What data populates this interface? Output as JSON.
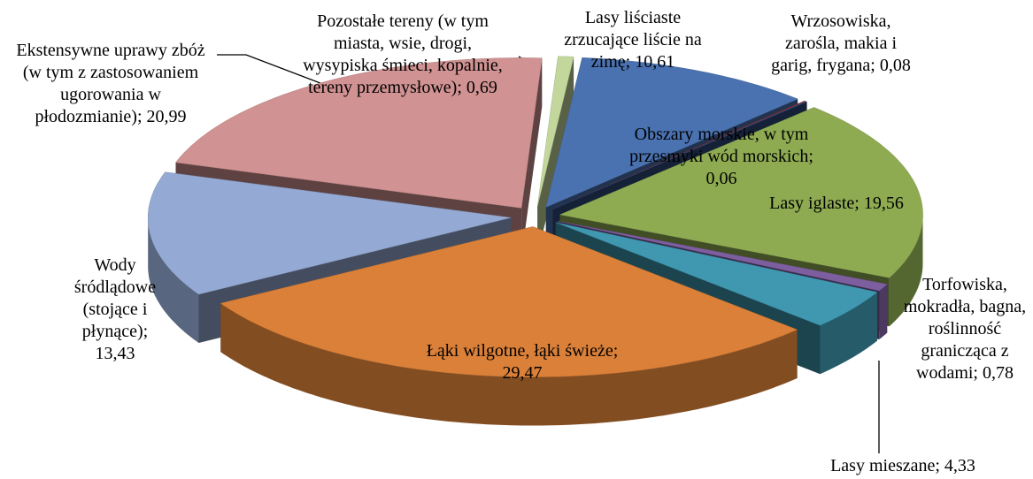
{
  "chart_data": {
    "type": "pie3d",
    "labels": [
      "Lasy liściaste zrzucające liście na zimę; 10,61",
      "Wrzosowiska, zarośla, makia i garig, frygana; 0,08",
      "Obszary morskie, w tym przesmyki wód morskich; 0,06",
      "Lasy iglaste; 19,56",
      "Torfowiska, mokradła, bagna, roślinność granicząca z wodami; 0,78",
      "Lasy mieszane; 4,33",
      "Łąki wilgotne, łąki świeże; 29,47",
      "Wody śródlądowe (stojące i płynące); 13,43",
      "Ekstensywne uprawy zbóż (w tym z zastosowaniem ugorowania w płodozmianie); 20,99",
      "Pozostałe tereny (w tym miasta, wsie, drogi, wysypiska śmieci, kopalnie, tereny przemysłowe); 0,69"
    ],
    "values": [
      10.61,
      0.08,
      0.06,
      19.56,
      0.78,
      4.33,
      29.47,
      13.43,
      20.99,
      0.69
    ],
    "colors": [
      "#4a72b0",
      "#9a2f2f",
      "#2c4a7a",
      "#8eab52",
      "#7d5fa0",
      "#3f98b0",
      "#db8038",
      "#94aad4",
      "#d09292",
      "#c3d79c"
    ]
  }
}
